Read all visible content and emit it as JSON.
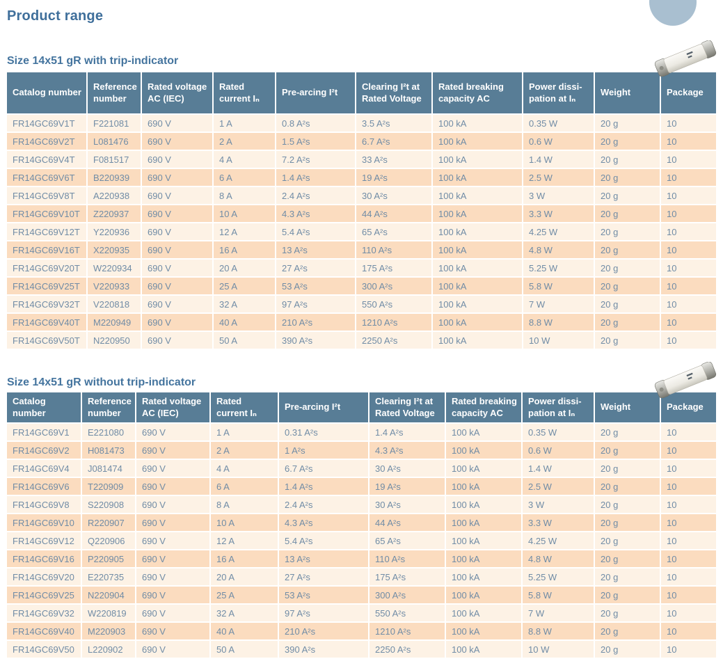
{
  "page": {
    "title": "Product range"
  },
  "colors": {
    "heading_text": "#44749e",
    "table_header_bg": "#587d96",
    "row_light": "#fdf2e5",
    "row_peach": "#fbdcbf",
    "cell_text": "#708ca6",
    "decor_circle": "#a9bfd0"
  },
  "icons": {
    "fuse_photo": "fuse-cartridge-product-photo",
    "decor": "corner-circle"
  },
  "tables": [
    {
      "section_title": "Size 14x51 gR with trip-indicator",
      "columns": [
        "Catalog number",
        "Reference number",
        "Rated voltage AC (IEC)",
        "Rated current Iₙ",
        "Pre-arcing I²t",
        "Clearing I²t at Rated Voltage",
        "Rated breaking capacity AC",
        "Power dissi-pation at Iₙ",
        "Weight",
        "Package"
      ],
      "rows": [
        [
          "FR14GC69V1T",
          "F221081",
          "690 V",
          "1 A",
          "0.8 A²s",
          "3.5 A²s",
          "100 kA",
          "0.35 W",
          "20 g",
          "10"
        ],
        [
          "FR14GC69V2T",
          "L081476",
          "690 V",
          "2 A",
          "1.5 A²s",
          "6.7 A²s",
          "100 kA",
          "0.6 W",
          "20 g",
          "10"
        ],
        [
          "FR14GC69V4T",
          "F081517",
          "690 V",
          "4 A",
          "7.2 A²s",
          "33 A²s",
          "100 kA",
          "1.4 W",
          "20 g",
          "10"
        ],
        [
          "FR14GC69V6T",
          "B220939",
          "690 V",
          "6 A",
          "1.4 A²s",
          "19 A²s",
          "100 kA",
          "2.5 W",
          "20 g",
          "10"
        ],
        [
          "FR14GC69V8T",
          "A220938",
          "690 V",
          "8 A",
          "2.4 A²s",
          "30 A²s",
          "100 kA",
          "3 W",
          "20 g",
          "10"
        ],
        [
          "FR14GC69V10T",
          "Z220937",
          "690 V",
          "10 A",
          "4.3 A²s",
          "44 A²s",
          "100 kA",
          "3.3 W",
          "20 g",
          "10"
        ],
        [
          "FR14GC69V12T",
          "Y220936",
          "690 V",
          "12 A",
          "5.4 A²s",
          "65 A²s",
          "100 kA",
          "4.25 W",
          "20 g",
          "10"
        ],
        [
          "FR14GC69V16T",
          "X220935",
          "690 V",
          "16 A",
          "13 A²s",
          "110 A²s",
          "100 kA",
          "4.8 W",
          "20 g",
          "10"
        ],
        [
          "FR14GC69V20T",
          "W220934",
          "690 V",
          "20 A",
          "27 A²s",
          "175 A²s",
          "100 kA",
          "5.25 W",
          "20 g",
          "10"
        ],
        [
          "FR14GC69V25T",
          "V220933",
          "690 V",
          "25 A",
          "53 A²s",
          "300 A²s",
          "100 kA",
          "5.8 W",
          "20 g",
          "10"
        ],
        [
          "FR14GC69V32T",
          "V220818",
          "690 V",
          "32 A",
          "97 A²s",
          "550 A²s",
          "100 kA",
          "7 W",
          "20 g",
          "10"
        ],
        [
          "FR14GC69V40T",
          "M220949",
          "690 V",
          "40 A",
          "210 A²s",
          "1210 A²s",
          "100 kA",
          "8.8 W",
          "20 g",
          "10"
        ],
        [
          "FR14GC69V50T",
          "N220950",
          "690 V",
          "50 A",
          "390 A²s",
          "2250 A²s",
          "100 kA",
          "10 W",
          "20 g",
          "10"
        ]
      ]
    },
    {
      "section_title": "Size 14x51 gR without trip-indicator",
      "columns": [
        "Catalog number",
        "Reference number",
        "Rated voltage AC (IEC)",
        "Rated current Iₙ",
        "Pre-arcing I²t",
        "Clearing I²t at Rated Voltage",
        "Rated breaking capacity AC",
        "Power dissi-pation at Iₙ",
        "Weight",
        "Package"
      ],
      "rows": [
        [
          "FR14GC69V1",
          "E221080",
          "690 V",
          "1 A",
          "0.31 A²s",
          "1.4 A²s",
          "100 kA",
          "0.35 W",
          "20 g",
          "10"
        ],
        [
          "FR14GC69V2",
          "H081473",
          "690 V",
          "2 A",
          "1 A²s",
          "4.3 A²s",
          "100 kA",
          "0.6 W",
          "20 g",
          "10"
        ],
        [
          "FR14GC69V4",
          "J081474",
          "690 V",
          "4 A",
          "6.7 A²s",
          "30 A²s",
          "100 kA",
          "1.4 W",
          "20 g",
          "10"
        ],
        [
          "FR14GC69V6",
          "T220909",
          "690 V",
          "6 A",
          "1.4 A²s",
          "19 A²s",
          "100 kA",
          "2.5 W",
          "20 g",
          "10"
        ],
        [
          "FR14GC69V8",
          "S220908",
          "690 V",
          "8 A",
          "2.4 A²s",
          "30 A²s",
          "100 kA",
          "3 W",
          "20 g",
          "10"
        ],
        [
          "FR14GC69V10",
          "R220907",
          "690 V",
          "10 A",
          "4.3 A²s",
          "44 A²s",
          "100 kA",
          "3.3 W",
          "20 g",
          "10"
        ],
        [
          "FR14GC69V12",
          "Q220906",
          "690 V",
          "12 A",
          "5.4 A²s",
          "65 A²s",
          "100 kA",
          "4.25 W",
          "20 g",
          "10"
        ],
        [
          "FR14GC69V16",
          "P220905",
          "690 V",
          "16 A",
          "13 A²s",
          "110 A²s",
          "100 kA",
          "4.8 W",
          "20 g",
          "10"
        ],
        [
          "FR14GC69V20",
          "E220735",
          "690 V",
          "20 A",
          "27 A²s",
          "175 A²s",
          "100 kA",
          "5.25 W",
          "20 g",
          "10"
        ],
        [
          "FR14GC69V25",
          "N220904",
          "690 V",
          "25 A",
          "53 A²s",
          "300 A²s",
          "100 kA",
          "5.8 W",
          "20 g",
          "10"
        ],
        [
          "FR14GC69V32",
          "W220819",
          "690 V",
          "32 A",
          "97 A²s",
          "550 A²s",
          "100 kA",
          "7 W",
          "20 g",
          "10"
        ],
        [
          "FR14GC69V40",
          "M220903",
          "690 V",
          "40 A",
          "210 A²s",
          "1210 A²s",
          "100 kA",
          "8.8 W",
          "20 g",
          "10"
        ],
        [
          "FR14GC69V50",
          "L220902",
          "690 V",
          "50 A",
          "390 A²s",
          "2250 A²s",
          "100 kA",
          "10 W",
          "20 g",
          "10"
        ]
      ]
    }
  ]
}
